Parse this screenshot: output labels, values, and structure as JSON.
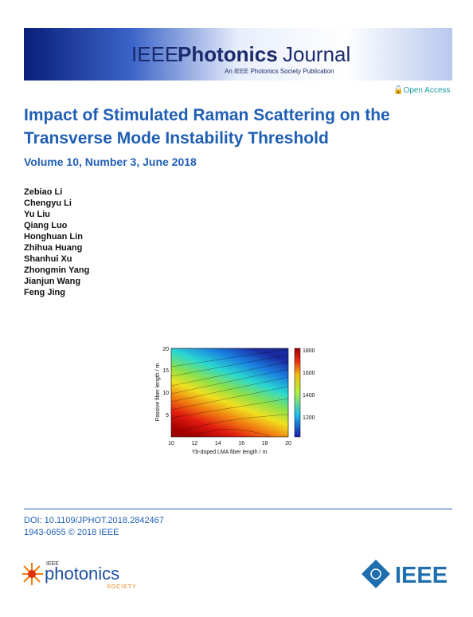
{
  "header": {
    "journal_prefix": "IEEE",
    "journal_name": "Photonics",
    "journal_suffix": "Journal",
    "publication": "An IEEE Photonics Society Publication",
    "access": "Open Access"
  },
  "article": {
    "title_lines": [
      "Impact of Stimulated Raman Scattering on the",
      "Transverse Mode Instability Threshold"
    ],
    "volume": "Volume 10, Number 3, June 2018",
    "authors": [
      "Zebiao Li",
      "Chengyu Li",
      "Yu Liu",
      "Qiang Luo",
      "Honghuan Lin",
      "Zhihua Huang",
      "Shanhui Xu",
      "Zhongmin Yang",
      "Jianjun Wang",
      "Feng Jing"
    ]
  },
  "figure": {
    "x_label": "Yb-doped LMA fiber length / m",
    "y_label": "Passive fiber length / m",
    "x_ticks": [
      "10",
      "12",
      "14",
      "16",
      "18",
      "20"
    ],
    "y_ticks": [
      "20",
      "15",
      "10",
      "5"
    ],
    "colorbar_ticks": [
      "1800",
      "1600",
      "1400",
      "1200"
    ]
  },
  "footer": {
    "doi": "DOI: 10.1109/JPHOT.2018.2842467",
    "issn": "1943-0655 © 2018 IEEE",
    "society_top": "IEEE",
    "society_name": "photonics",
    "society_bottom": "SOCIETY",
    "ieee": "IEEE"
  }
}
